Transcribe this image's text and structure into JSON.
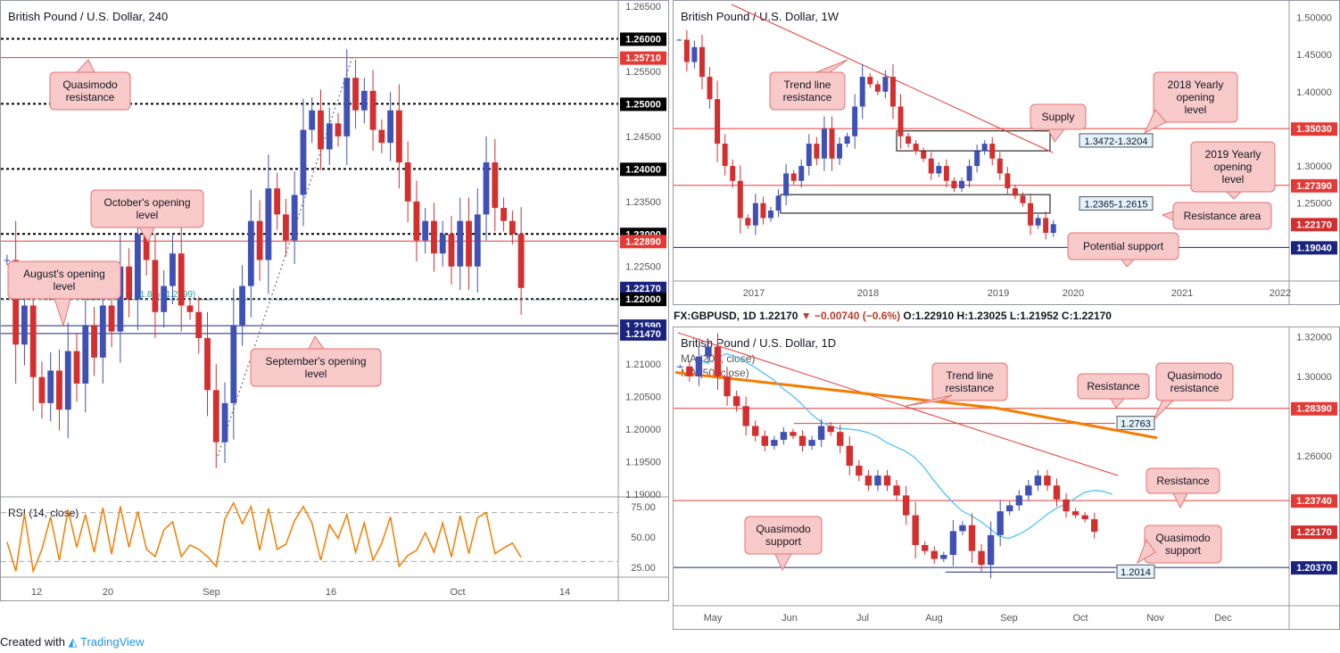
{
  "footer": {
    "created_with": "Created with",
    "brand": "TradingView"
  },
  "daily_header": {
    "symbol": "FX:GBPUSD, 1D",
    "last": "1.22170",
    "change": "−0.00740 (−0.6%)",
    "o": "O:1.22910",
    "h": "H:1.23025",
    "l": "L:1.21952",
    "c": "C:1.22170"
  },
  "colors": {
    "up": "#3f51b5",
    "down": "#d32f2f",
    "ma200": "#f57c00",
    "ma50": "#4fc3f7",
    "rsi": "#f57c00",
    "red_line": "#e53935",
    "blue_line": "#1a237e",
    "callout_fill": "#f8c9c9",
    "callout_border": "#e57373"
  },
  "chart_data": [
    {
      "id": "h4",
      "type": "candlestick",
      "title": "British Pound / U.S. Dollar, 240",
      "ylim": [
        1.19,
        1.265
      ],
      "y_ticks": [
        "1.26500",
        "1.26000",
        "1.25710",
        "1.25500",
        "1.25000",
        "1.24500",
        "1.24000",
        "1.23500",
        "1.23000",
        "1.22890",
        "1.22500",
        "1.22170",
        "1.22000",
        "1.21590",
        "1.21470",
        "1.21000",
        "1.20500",
        "1.20000",
        "1.19500",
        "1.19000"
      ],
      "x_ticks": [
        "12",
        "20",
        "Sep",
        "16",
        "Oct",
        "14"
      ],
      "levels": [
        {
          "value": 1.26,
          "label": "1.26000",
          "style": "dotted",
          "color": "#000000"
        },
        {
          "value": 1.2571,
          "label": "1.25710",
          "style": "solid",
          "color": "#e53935"
        },
        {
          "value": 1.25,
          "label": "1.25000",
          "style": "dotted",
          "color": "#000000"
        },
        {
          "value": 1.24,
          "label": "1.24000",
          "style": "dotted",
          "color": "#000000"
        },
        {
          "value": 1.23,
          "label": "1.23000",
          "style": "dotted",
          "color": "#000000"
        },
        {
          "value": 1.2289,
          "label": "1.22890",
          "style": "solid",
          "color": "#e53935"
        },
        {
          "value": 1.2217,
          "label": "1.22170",
          "style": "price",
          "color": "#1a237e"
        },
        {
          "value": 1.22,
          "label": "1.22000",
          "style": "dotted",
          "color": "#000000"
        },
        {
          "value": 1.2159,
          "label": "1.21590",
          "style": "solid",
          "color": "#1a237e"
        },
        {
          "value": 1.2147,
          "label": "1.21470",
          "style": "solid",
          "color": "#1a237e"
        }
      ],
      "annotations": [
        "Quasimodo resistance",
        "October's opening level",
        "August's opening level",
        "September's opening level",
        "61.8% (1.2199)"
      ],
      "rsi": {
        "label": "RSI (14, close)",
        "ticks": [
          "75.00",
          "50.00",
          "25.00"
        ],
        "levels": [
          70,
          30
        ]
      },
      "series": [
        1.226,
        1.213,
        1.219,
        1.208,
        1.204,
        1.209,
        1.203,
        1.212,
        1.207,
        1.216,
        1.211,
        1.219,
        1.215,
        1.225,
        1.22,
        1.23,
        1.226,
        1.218,
        1.222,
        1.227,
        1.219,
        1.218,
        1.214,
        1.206,
        1.198,
        1.204,
        1.216,
        1.222,
        1.232,
        1.226,
        1.237,
        1.233,
        1.229,
        1.236,
        1.246,
        1.249,
        1.243,
        1.247,
        1.245,
        1.254,
        1.249,
        1.252,
        1.246,
        1.244,
        1.249,
        1.241,
        1.235,
        1.229,
        1.232,
        1.227,
        1.23,
        1.225,
        1.232,
        1.225,
        1.233,
        1.241,
        1.234,
        1.232,
        1.23,
        1.2217
      ]
    },
    {
      "id": "weekly",
      "type": "candlestick",
      "title": "British Pound / U.S. Dollar, 1W",
      "ylim": [
        1.15,
        1.515
      ],
      "y_ticks": [
        "1.50000",
        "1.45000",
        "1.40000",
        "1.35030",
        "1.30000",
        "1.27390",
        "1.25000",
        "1.22170",
        "1.19040"
      ],
      "x_ticks": [
        "2017",
        "2018",
        "2019",
        "2020",
        "2021",
        "2022"
      ],
      "levels": [
        {
          "value": 1.3503,
          "label": "1.35030",
          "style": "solid",
          "color": "#e53935"
        },
        {
          "value": 1.2739,
          "label": "1.27390",
          "style": "solid",
          "color": "#e53935"
        },
        {
          "value": 1.2217,
          "label": "1.22170",
          "style": "price",
          "color": "#d32f2f"
        },
        {
          "value": 1.1904,
          "label": "1.19040",
          "style": "solid",
          "color": "#1a237e"
        }
      ],
      "zones": [
        {
          "label": "1.3472-1.3204",
          "top": 1.3472,
          "bottom": 1.3204
        },
        {
          "label": "1.2365-1.2615",
          "top": 1.2615,
          "bottom": 1.2365
        }
      ],
      "annotations": [
        "Trend line resistance",
        "2018 Yearly opening level",
        "Supply",
        "2019 Yearly opening level",
        "Resistance area",
        "Potential support"
      ],
      "series": [
        1.47,
        1.44,
        1.46,
        1.42,
        1.39,
        1.33,
        1.3,
        1.28,
        1.23,
        1.22,
        1.25,
        1.23,
        1.24,
        1.26,
        1.29,
        1.28,
        1.3,
        1.33,
        1.31,
        1.35,
        1.31,
        1.33,
        1.34,
        1.38,
        1.42,
        1.41,
        1.4,
        1.42,
        1.38,
        1.34,
        1.33,
        1.32,
        1.31,
        1.29,
        1.3,
        1.28,
        1.27,
        1.28,
        1.3,
        1.32,
        1.33,
        1.31,
        1.29,
        1.27,
        1.26,
        1.25,
        1.22,
        1.23,
        1.21,
        1.2217
      ]
    },
    {
      "id": "daily",
      "type": "candlestick",
      "title": "British Pound / U.S. Dollar, 1D",
      "ylim": [
        1.197,
        1.322
      ],
      "y_ticks": [
        "1.32000",
        "1.30000",
        "1.28390",
        "1.26000",
        "1.23740",
        "1.22170",
        "1.20370"
      ],
      "x_ticks": [
        "May",
        "Jun",
        "Jul",
        "Aug",
        "Sep",
        "Oct",
        "Nov",
        "Dec"
      ],
      "legend": [
        "MA (200, close)",
        "MA (50, close)"
      ],
      "levels": [
        {
          "value": 1.2839,
          "label": "1.28390",
          "style": "solid",
          "color": "#e53935"
        },
        {
          "value": 1.2374,
          "label": "1.23740",
          "style": "solid",
          "color": "#e53935"
        },
        {
          "value": 1.2217,
          "label": "1.22170",
          "style": "price",
          "color": "#d32f2f"
        },
        {
          "value": 1.2037,
          "label": "1.20370",
          "style": "solid",
          "color": "#1a237e"
        }
      ],
      "marks": [
        {
          "label": "1.2763",
          "value": 1.2763
        },
        {
          "label": "1.2014",
          "value": 1.2014
        }
      ],
      "annotations": [
        "Trend line resistance",
        "Resistance",
        "Quasimodo resistance",
        "Resistance",
        "Quasimodo support",
        "Quasimodo support"
      ],
      "series": [
        1.305,
        1.3,
        1.31,
        1.315,
        1.3,
        1.29,
        1.285,
        1.275,
        1.27,
        1.265,
        1.268,
        1.272,
        1.27,
        1.265,
        1.268,
        1.275,
        1.272,
        1.265,
        1.255,
        1.25,
        1.245,
        1.25,
        1.245,
        1.24,
        1.23,
        1.215,
        1.212,
        1.208,
        1.21,
        1.222,
        1.225,
        1.212,
        1.205,
        1.22,
        1.232,
        1.235,
        1.24,
        1.245,
        1.25,
        1.245,
        1.238,
        1.232,
        1.23,
        1.228,
        1.2217
      ]
    }
  ]
}
